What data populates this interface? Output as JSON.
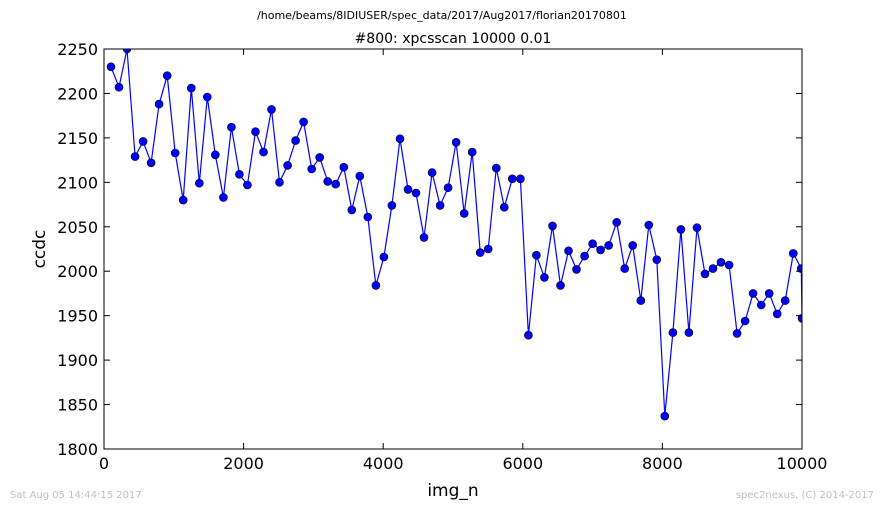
{
  "header": {
    "path": "/home/beams/8IDIUSER/spec_data/2017/Aug2017/florian20170801"
  },
  "footer": {
    "timestamp": "Sat Aug 05 14:44:15 2017",
    "credit": "spec2nexus, (C) 2014-2017"
  },
  "chart_data": {
    "type": "line",
    "title": "#800: xpcsscan 10000 0.01",
    "xlabel": "img_n",
    "ylabel": "ccdc",
    "xlim": [
      0,
      10000
    ],
    "ylim": [
      1800,
      2250
    ],
    "xticks": [
      0,
      2000,
      4000,
      6000,
      8000,
      10000
    ],
    "yticks": [
      1800,
      1850,
      1900,
      1950,
      2000,
      2050,
      2100,
      2150,
      2200,
      2250
    ],
    "grid": false,
    "line_color": "#0000ff",
    "marker": "circle",
    "series": [
      {
        "x": [
          100,
          215,
          330,
          445,
          560,
          675,
          790,
          905,
          1020,
          1135,
          1250,
          1365,
          1480,
          1595,
          1710,
          1825,
          1940,
          2055,
          2170,
          2285,
          2400,
          2515,
          2630,
          2745,
          2860,
          2975,
          3090,
          3205,
          3320,
          3435,
          3550,
          3665,
          3780,
          3895,
          4010,
          4125,
          4240,
          4355,
          4470,
          4585,
          4700,
          4815,
          4930,
          5045,
          5160,
          5275,
          5390,
          5505,
          5620,
          5735,
          5850,
          5965,
          6080,
          6195,
          6310,
          6425,
          6540,
          6655,
          6770,
          6885,
          7000,
          7115,
          7230,
          7345,
          7460,
          7575,
          7690,
          7805,
          7920,
          8035,
          8150,
          8265,
          8380,
          8495,
          8610,
          8725,
          8840,
          8955,
          9070,
          9185,
          9300,
          9415,
          9530,
          9645,
          9760,
          9875,
          9990,
          10000
        ],
        "y": [
          2230,
          2207,
          2250,
          2129,
          2146,
          2122,
          2188,
          2220,
          2133,
          2080,
          2206,
          2099,
          2196,
          2131,
          2083,
          2162,
          2109,
          2097,
          2157,
          2134,
          2182,
          2100,
          2119,
          2147,
          2168,
          2115,
          2128,
          2101,
          2098,
          2117,
          2069,
          2107,
          2061,
          1984,
          2016,
          2074,
          2149,
          2092,
          2088,
          2038,
          2111,
          2074,
          2094,
          2145,
          2065,
          2134,
          2021,
          2025,
          2116,
          2072,
          2104,
          2104,
          1928,
          2018,
          1993,
          2051,
          1984,
          2023,
          2002,
          2017,
          2031,
          2024,
          2029,
          2055,
          2003,
          2029,
          1967,
          2052,
          2013,
          1837,
          1931,
          2047,
          1931,
          2049,
          1997,
          2003,
          2010,
          2007,
          1930,
          1944,
          1975,
          1962,
          1975,
          1952,
          1967,
          2020,
          2003,
          1947
        ]
      }
    ]
  }
}
